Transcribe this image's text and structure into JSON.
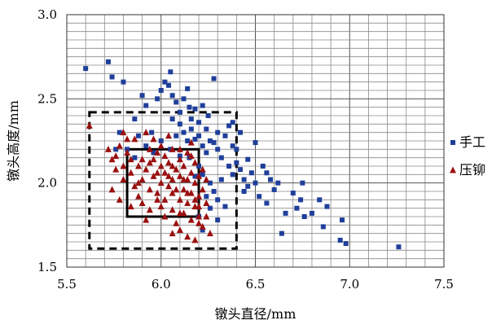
{
  "chart_data": {
    "type": "scatter",
    "xlabel": "镦头直径/mm",
    "ylabel": "镦头高度/mm",
    "xlim": [
      5.5,
      7.5
    ],
    "ylim": [
      1.5,
      3.0
    ],
    "x_ticks": [
      "5.5",
      "6.0",
      "6.5",
      "7.0",
      "7.5"
    ],
    "y_ticks": [
      "1.5",
      "2.0",
      "2.5",
      "3.0"
    ],
    "x_minor_step": 0.1,
    "y_minor_step": 0.05,
    "grid": true,
    "legend_position": "right",
    "series": [
      {
        "name": "手工",
        "marker": "square",
        "color": "#1f3f9a",
        "points": [
          [
            5.6,
            2.68
          ],
          [
            5.72,
            2.72
          ],
          [
            5.74,
            2.63
          ],
          [
            5.8,
            2.6
          ],
          [
            5.9,
            2.52
          ],
          [
            5.92,
            2.46
          ],
          [
            5.95,
            2.3
          ],
          [
            5.98,
            2.5
          ],
          [
            6.0,
            2.55
          ],
          [
            6.02,
            2.6
          ],
          [
            6.04,
            2.58
          ],
          [
            6.05,
            2.66
          ],
          [
            6.06,
            2.52
          ],
          [
            6.08,
            2.48
          ],
          [
            6.1,
            2.42
          ],
          [
            6.12,
            2.5
          ],
          [
            6.14,
            2.56
          ],
          [
            6.15,
            2.45
          ],
          [
            6.16,
            2.38
          ],
          [
            6.18,
            2.44
          ],
          [
            6.2,
            2.36
          ],
          [
            6.22,
            2.46
          ],
          [
            6.24,
            2.32
          ],
          [
            6.25,
            2.4
          ],
          [
            6.28,
            2.62
          ],
          [
            6.28,
            2.24
          ],
          [
            6.1,
            2.35
          ],
          [
            6.12,
            2.3
          ],
          [
            6.14,
            2.25
          ],
          [
            6.16,
            2.32
          ],
          [
            6.18,
            2.26
          ],
          [
            6.2,
            2.28
          ],
          [
            6.22,
            2.22
          ],
          [
            6.24,
            2.18
          ],
          [
            6.26,
            2.25
          ],
          [
            6.3,
            2.3
          ],
          [
            6.3,
            2.2
          ],
          [
            6.32,
            2.15
          ],
          [
            6.34,
            2.28
          ],
          [
            6.36,
            2.34
          ],
          [
            6.36,
            2.1
          ],
          [
            6.38,
            2.05
          ],
          [
            6.38,
            2.22
          ],
          [
            6.4,
            2.12
          ],
          [
            6.42,
            2.08
          ],
          [
            6.42,
            2.3
          ],
          [
            6.44,
            2.02
          ],
          [
            6.44,
            1.95
          ],
          [
            6.46,
            2.14
          ],
          [
            6.48,
            2.06
          ],
          [
            6.5,
            2.0
          ],
          [
            6.5,
            2.24
          ],
          [
            6.52,
            1.92
          ],
          [
            6.54,
            2.1
          ],
          [
            6.56,
            2.06
          ],
          [
            6.56,
            1.88
          ],
          [
            6.58,
            2.02
          ],
          [
            6.6,
            1.96
          ],
          [
            6.62,
            2.0
          ],
          [
            6.64,
            1.7
          ],
          [
            6.66,
            1.82
          ],
          [
            6.7,
            1.94
          ],
          [
            6.72,
            1.85
          ],
          [
            6.74,
            1.9
          ],
          [
            6.75,
            2.0
          ],
          [
            6.76,
            1.8
          ],
          [
            6.8,
            1.82
          ],
          [
            6.84,
            1.9
          ],
          [
            6.86,
            1.74
          ],
          [
            6.88,
            1.86
          ],
          [
            6.95,
            1.66
          ],
          [
            6.96,
            1.78
          ],
          [
            6.98,
            1.64
          ],
          [
            7.26,
            1.62
          ],
          [
            6.2,
            2.1
          ],
          [
            6.22,
            2.05
          ],
          [
            6.26,
            2.0
          ],
          [
            6.28,
            1.95
          ],
          [
            6.3,
            1.9
          ],
          [
            6.32,
            2.02
          ],
          [
            6.34,
            1.86
          ],
          [
            6.26,
            1.85
          ],
          [
            6.3,
            1.78
          ],
          [
            6.22,
            1.72
          ],
          [
            6.2,
            1.8
          ],
          [
            6.24,
            1.92
          ],
          [
            6.15,
            2.15
          ],
          [
            6.05,
            2.2
          ],
          [
            6.0,
            2.25
          ],
          [
            5.96,
            2.18
          ],
          [
            5.92,
            2.22
          ],
          [
            5.88,
            2.28
          ],
          [
            5.86,
            2.15
          ],
          [
            5.82,
            2.2
          ],
          [
            5.76,
            2.2
          ],
          [
            5.78,
            2.3
          ],
          [
            5.86,
            2.38
          ],
          [
            6.06,
            2.38
          ],
          [
            6.08,
            2.28
          ],
          [
            6.1,
            2.16
          ],
          [
            6.18,
            2.04
          ],
          [
            6.4,
            2.2
          ],
          [
            6.38,
            2.36
          ],
          [
            6.46,
            1.98
          ]
        ]
      },
      {
        "name": "压铆",
        "marker": "triangle",
        "color": "#9b1010",
        "points": [
          [
            5.62,
            2.34
          ],
          [
            5.72,
            2.2
          ],
          [
            5.74,
            2.14
          ],
          [
            5.74,
            1.96
          ],
          [
            5.76,
            2.16
          ],
          [
            5.78,
            2.22
          ],
          [
            5.8,
            2.3
          ],
          [
            5.8,
            2.1
          ],
          [
            5.82,
            2.18
          ],
          [
            5.84,
            2.06
          ],
          [
            5.84,
            1.86
          ],
          [
            5.86,
            1.98
          ],
          [
            5.86,
            2.26
          ],
          [
            5.88,
            2.0
          ],
          [
            5.88,
            1.92
          ],
          [
            5.9,
            2.14
          ],
          [
            5.9,
            1.88
          ],
          [
            5.92,
            2.08
          ],
          [
            5.92,
            1.78
          ],
          [
            5.94,
            2.2
          ],
          [
            5.94,
            1.96
          ],
          [
            5.96,
            2.04
          ],
          [
            5.96,
            2.14
          ],
          [
            5.98,
            1.94
          ],
          [
            5.98,
            2.18
          ],
          [
            6.0,
            2.0
          ],
          [
            6.0,
            2.1
          ],
          [
            6.0,
            1.86
          ],
          [
            6.02,
            2.06
          ],
          [
            6.02,
            1.9
          ],
          [
            6.02,
            2.16
          ],
          [
            6.04,
            1.98
          ],
          [
            6.04,
            2.12
          ],
          [
            6.06,
            2.02
          ],
          [
            6.06,
            1.84
          ],
          [
            6.06,
            2.2
          ],
          [
            6.08,
            1.96
          ],
          [
            6.08,
            2.08
          ],
          [
            6.08,
            1.76
          ],
          [
            6.1,
            2.04
          ],
          [
            6.1,
            1.9
          ],
          [
            6.1,
            2.14
          ],
          [
            6.12,
            1.96
          ],
          [
            6.12,
            2.1
          ],
          [
            6.12,
            1.82
          ],
          [
            6.14,
            2.02
          ],
          [
            6.14,
            1.88
          ],
          [
            6.14,
            2.18
          ],
          [
            6.16,
            1.94
          ],
          [
            6.16,
            2.06
          ],
          [
            6.16,
            1.78
          ],
          [
            6.18,
            2.0
          ],
          [
            6.18,
            1.86
          ],
          [
            6.18,
            2.12
          ],
          [
            6.2,
            1.92
          ],
          [
            6.2,
            2.04
          ],
          [
            6.2,
            1.8
          ],
          [
            6.22,
            1.96
          ],
          [
            6.22,
            2.08
          ],
          [
            6.22,
            1.74
          ],
          [
            6.24,
            1.88
          ],
          [
            6.24,
            2.02
          ],
          [
            6.26,
            1.7
          ],
          [
            6.18,
            1.66
          ],
          [
            6.14,
            1.68
          ],
          [
            6.1,
            1.72
          ],
          [
            6.06,
            1.7
          ],
          [
            6.2,
            1.76
          ],
          [
            6.24,
            1.8
          ],
          [
            5.82,
            2.26
          ],
          [
            5.92,
            2.3
          ],
          [
            6.04,
            2.28
          ],
          [
            6.16,
            2.24
          ],
          [
            6.0,
            2.22
          ],
          [
            5.96,
            2.26
          ],
          [
            5.94,
            2.12
          ],
          [
            6.04,
            2.04
          ],
          [
            6.1,
            2.2
          ],
          [
            6.12,
            2.02
          ],
          [
            5.88,
            2.1
          ],
          [
            5.84,
            2.14
          ],
          [
            5.8,
            2.02
          ],
          [
            5.9,
            2.02
          ],
          [
            5.98,
            2.06
          ],
          [
            6.06,
            1.94
          ],
          [
            6.14,
            1.94
          ],
          [
            6.18,
            1.9
          ],
          [
            5.94,
            1.84
          ],
          [
            6.02,
            1.8
          ],
          [
            6.1,
            1.82
          ],
          [
            6.2,
            1.86
          ],
          [
            5.98,
            1.9
          ],
          [
            6.06,
            2.1
          ],
          [
            6.16,
            2.16
          ],
          [
            5.76,
            2.08
          ],
          [
            5.78,
            1.9
          ]
        ]
      }
    ],
    "boxes": [
      {
        "style": "dashed",
        "x": [
          5.62,
          6.4
        ],
        "y": [
          1.61,
          2.42
        ]
      },
      {
        "style": "solid",
        "x": [
          5.82,
          6.2
        ],
        "y": [
          1.8,
          2.2
        ]
      }
    ]
  }
}
